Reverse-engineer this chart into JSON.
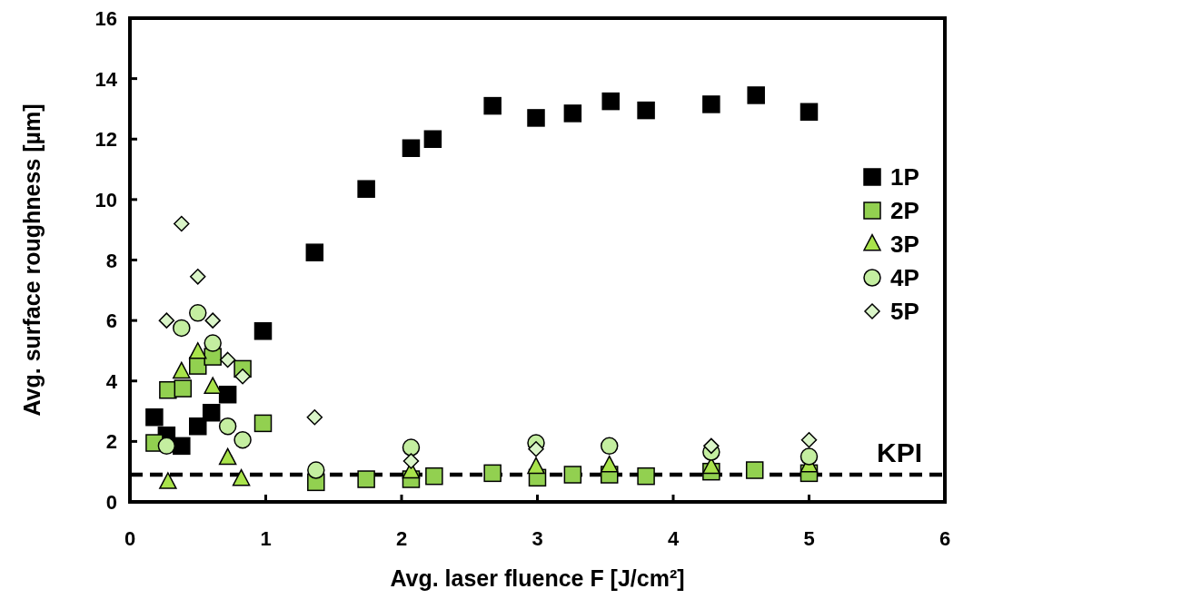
{
  "chart_data": {
    "type": "scatter",
    "xlabel": "Avg. laser fluence F [J/cm²]",
    "ylabel": "Avg. surface roughness [µm]",
    "xlim": [
      0,
      6
    ],
    "xticks": [
      0,
      1,
      2,
      3,
      4,
      5,
      6
    ],
    "ylim": [
      0,
      16
    ],
    "yticks": [
      0,
      2,
      4,
      6,
      8,
      10,
      12,
      14,
      16
    ],
    "grid": false,
    "legend": "right",
    "series": [
      {
        "name": "1P",
        "color": "#000000",
        "marker": "square",
        "x": [
          0.18,
          0.27,
          0.38,
          0.5,
          0.6,
          0.72,
          0.98,
          1.36,
          1.74,
          2.07,
          2.23,
          2.67,
          2.99,
          3.26,
          3.54,
          3.8,
          4.28,
          4.61,
          5.0
        ],
        "values": [
          2.8,
          2.2,
          1.85,
          2.5,
          2.95,
          3.55,
          5.65,
          8.25,
          10.35,
          11.7,
          12.0,
          13.1,
          12.7,
          12.85,
          13.25,
          12.95,
          13.15,
          13.45,
          12.9
        ]
      },
      {
        "name": "2P",
        "color": "#92d050",
        "marker": "square",
        "x": [
          0.18,
          0.28,
          0.39,
          0.5,
          0.61,
          0.83,
          0.98,
          1.37,
          1.74,
          2.07,
          2.24,
          2.67,
          3.0,
          3.26,
          3.53,
          3.8,
          4.28,
          4.6,
          5.0
        ],
        "values": [
          1.95,
          3.7,
          3.75,
          4.5,
          4.8,
          4.4,
          2.6,
          0.65,
          0.75,
          0.75,
          0.85,
          0.95,
          0.8,
          0.9,
          0.9,
          0.85,
          1.0,
          1.05,
          0.95
        ]
      },
      {
        "name": "3P",
        "color": "#a9e34b",
        "marker": "triangle",
        "x": [
          0.28,
          0.38,
          0.5,
          0.61,
          0.72,
          0.82,
          2.07,
          2.99,
          3.53,
          4.28,
          5.0
        ],
        "values": [
          0.65,
          4.3,
          4.95,
          3.8,
          1.45,
          0.75,
          1.0,
          1.15,
          1.2,
          1.15,
          1.2
        ]
      },
      {
        "name": "4P",
        "color": "#c4eea0",
        "marker": "circle",
        "x": [
          0.27,
          0.38,
          0.5,
          0.61,
          0.72,
          0.83,
          1.37,
          2.07,
          2.99,
          3.53,
          4.28,
          5.0
        ],
        "values": [
          1.85,
          5.75,
          6.25,
          5.25,
          2.5,
          2.05,
          1.05,
          1.8,
          1.95,
          1.85,
          1.65,
          1.5
        ]
      },
      {
        "name": "5P",
        "color": "#daf5c8",
        "marker": "diamond",
        "x": [
          0.27,
          0.38,
          0.5,
          0.61,
          0.72,
          0.83,
          1.36,
          2.07,
          2.99,
          4.28,
          5.0
        ],
        "values": [
          6.0,
          9.2,
          7.45,
          6.0,
          4.7,
          4.15,
          2.8,
          1.35,
          1.75,
          1.85,
          2.05
        ]
      }
    ],
    "ref_lines": [
      {
        "axis": "y",
        "value": 0.9,
        "label": "KPI",
        "color": "#000000",
        "line_style": "dashed"
      }
    ]
  }
}
